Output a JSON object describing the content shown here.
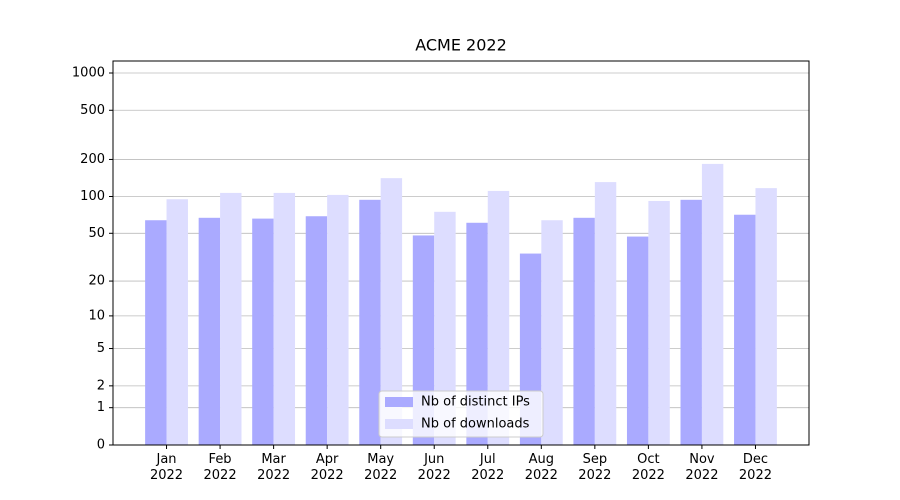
{
  "chart_data": {
    "type": "bar",
    "title": "ACME 2022",
    "categories": [
      "Jan\n2022",
      "Feb\n2022",
      "Mar\n2022",
      "Apr\n2022",
      "May\n2022",
      "Jun\n2022",
      "Jul\n2022",
      "Aug\n2022",
      "Sep\n2022",
      "Oct\n2022",
      "Nov\n2022",
      "Dec\n2022"
    ],
    "series": [
      {
        "name": "Nb of distinct IPs",
        "color": "#aaaaff",
        "values": [
          64,
          67,
          66,
          69,
          94,
          48,
          61,
          34,
          67,
          47,
          94,
          71
        ]
      },
      {
        "name": "Nb of downloads",
        "color": "#ddddff",
        "values": [
          95,
          107,
          107,
          103,
          141,
          75,
          111,
          64,
          131,
          92,
          184,
          117
        ]
      }
    ],
    "yscale": "log1p",
    "ylim": [
      0,
      1250
    ],
    "yticks": [
      0,
      1,
      2,
      5,
      10,
      20,
      50,
      100,
      200,
      500,
      1000
    ],
    "grid": true,
    "legend": "lower center"
  }
}
